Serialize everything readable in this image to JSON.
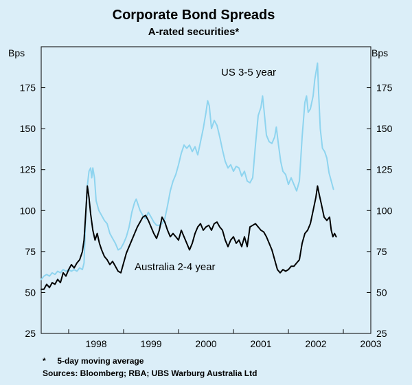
{
  "chart_data": {
    "type": "line",
    "title": "Corporate Bond Spreads",
    "subtitle": "A-rated securities*",
    "ylabel_left": "Bps",
    "ylabel_right": "Bps",
    "ylim": [
      25,
      200
    ],
    "yticks": [
      25,
      50,
      75,
      100,
      125,
      150,
      175
    ],
    "xlim": [
      1997.5,
      2003.5
    ],
    "xticks": [
      {
        "label": "1998",
        "value": 1998.0
      },
      {
        "label": "1999",
        "value": 1999.0
      },
      {
        "label": "2000",
        "value": 2000.0
      },
      {
        "label": "2001",
        "value": 2001.0
      },
      {
        "label": "2002",
        "value": 2002.0
      },
      {
        "label": "2003",
        "value": 2003.0
      }
    ],
    "grid": false,
    "series": [
      {
        "name": "US 3-5 year",
        "color": "#8ed4ef",
        "points": [
          [
            1997.5,
            58
          ],
          [
            1997.55,
            60
          ],
          [
            1997.6,
            61
          ],
          [
            1997.65,
            60
          ],
          [
            1997.7,
            62
          ],
          [
            1997.75,
            61
          ],
          [
            1997.8,
            63
          ],
          [
            1997.85,
            62
          ],
          [
            1997.9,
            64
          ],
          [
            1997.95,
            63
          ],
          [
            1998.0,
            64
          ],
          [
            1998.05,
            63
          ],
          [
            1998.1,
            64
          ],
          [
            1998.15,
            63
          ],
          [
            1998.2,
            65
          ],
          [
            1998.25,
            64
          ],
          [
            1998.28,
            68
          ],
          [
            1998.31,
            96
          ],
          [
            1998.34,
            115
          ],
          [
            1998.37,
            124
          ],
          [
            1998.4,
            126
          ],
          [
            1998.42,
            120
          ],
          [
            1998.44,
            126
          ],
          [
            1998.47,
            120
          ],
          [
            1998.5,
            106
          ],
          [
            1998.55,
            100
          ],
          [
            1998.6,
            97
          ],
          [
            1998.65,
            94
          ],
          [
            1998.7,
            92
          ],
          [
            1998.75,
            86
          ],
          [
            1998.8,
            83
          ],
          [
            1998.85,
            80
          ],
          [
            1998.9,
            76
          ],
          [
            1998.95,
            77
          ],
          [
            1999.0,
            80
          ],
          [
            1999.05,
            84
          ],
          [
            1999.1,
            90
          ],
          [
            1999.15,
            99
          ],
          [
            1999.2,
            105
          ],
          [
            1999.23,
            107
          ],
          [
            1999.26,
            104
          ],
          [
            1999.3,
            100
          ],
          [
            1999.35,
            97
          ],
          [
            1999.4,
            95
          ],
          [
            1999.45,
            99
          ],
          [
            1999.5,
            96
          ],
          [
            1999.55,
            93
          ],
          [
            1999.6,
            91
          ],
          [
            1999.65,
            91
          ],
          [
            1999.7,
            92
          ],
          [
            1999.75,
            95
          ],
          [
            1999.8,
            103
          ],
          [
            1999.85,
            112
          ],
          [
            1999.9,
            118
          ],
          [
            1999.95,
            122
          ],
          [
            2000.0,
            128
          ],
          [
            2000.05,
            135
          ],
          [
            2000.1,
            140
          ],
          [
            2000.15,
            138
          ],
          [
            2000.2,
            140
          ],
          [
            2000.25,
            136
          ],
          [
            2000.3,
            139
          ],
          [
            2000.35,
            134
          ],
          [
            2000.4,
            142
          ],
          [
            2000.45,
            150
          ],
          [
            2000.5,
            160
          ],
          [
            2000.53,
            167
          ],
          [
            2000.56,
            164
          ],
          [
            2000.6,
            150
          ],
          [
            2000.65,
            155
          ],
          [
            2000.7,
            152
          ],
          [
            2000.75,
            145
          ],
          [
            2000.8,
            137
          ],
          [
            2000.85,
            130
          ],
          [
            2000.9,
            126
          ],
          [
            2000.95,
            128
          ],
          [
            2001.0,
            124
          ],
          [
            2001.05,
            127
          ],
          [
            2001.1,
            126
          ],
          [
            2001.15,
            121
          ],
          [
            2001.2,
            124
          ],
          [
            2001.25,
            118
          ],
          [
            2001.3,
            117
          ],
          [
            2001.35,
            120
          ],
          [
            2001.4,
            140
          ],
          [
            2001.45,
            158
          ],
          [
            2001.5,
            163
          ],
          [
            2001.53,
            170
          ],
          [
            2001.56,
            160
          ],
          [
            2001.6,
            146
          ],
          [
            2001.65,
            142
          ],
          [
            2001.7,
            141
          ],
          [
            2001.75,
            145
          ],
          [
            2001.78,
            151
          ],
          [
            2001.82,
            140
          ],
          [
            2001.86,
            130
          ],
          [
            2001.9,
            124
          ],
          [
            2001.95,
            122
          ],
          [
            2002.0,
            116
          ],
          [
            2002.05,
            120
          ],
          [
            2002.1,
            116
          ],
          [
            2002.15,
            112
          ],
          [
            2002.2,
            118
          ],
          [
            2002.25,
            145
          ],
          [
            2002.3,
            166
          ],
          [
            2002.33,
            170
          ],
          [
            2002.36,
            160
          ],
          [
            2002.4,
            162
          ],
          [
            2002.45,
            170
          ],
          [
            2002.48,
            180
          ],
          [
            2002.51,
            186
          ],
          [
            2002.53,
            190
          ],
          [
            2002.55,
            172
          ],
          [
            2002.58,
            150
          ],
          [
            2002.62,
            138
          ],
          [
            2002.66,
            136
          ],
          [
            2002.7,
            132
          ],
          [
            2002.74,
            123
          ],
          [
            2002.78,
            118
          ],
          [
            2002.82,
            113
          ]
        ]
      },
      {
        "name": "Australia 2-4 year",
        "color": "#000000",
        "points": [
          [
            1997.5,
            52
          ],
          [
            1997.55,
            52
          ],
          [
            1997.6,
            55
          ],
          [
            1997.65,
            53
          ],
          [
            1997.7,
            56
          ],
          [
            1997.75,
            55
          ],
          [
            1997.8,
            58
          ],
          [
            1997.85,
            56
          ],
          [
            1997.9,
            62
          ],
          [
            1997.95,
            60
          ],
          [
            1998.0,
            64
          ],
          [
            1998.05,
            67
          ],
          [
            1998.1,
            65
          ],
          [
            1998.15,
            68
          ],
          [
            1998.2,
            70
          ],
          [
            1998.25,
            75
          ],
          [
            1998.28,
            82
          ],
          [
            1998.31,
            98
          ],
          [
            1998.34,
            115
          ],
          [
            1998.37,
            108
          ],
          [
            1998.4,
            98
          ],
          [
            1998.44,
            88
          ],
          [
            1998.48,
            82
          ],
          [
            1998.52,
            86
          ],
          [
            1998.56,
            80
          ],
          [
            1998.6,
            76
          ],
          [
            1998.65,
            72
          ],
          [
            1998.7,
            70
          ],
          [
            1998.75,
            67
          ],
          [
            1998.8,
            69
          ],
          [
            1998.85,
            66
          ],
          [
            1998.9,
            63
          ],
          [
            1998.95,
            62
          ],
          [
            1999.0,
            68
          ],
          [
            1999.05,
            74
          ],
          [
            1999.1,
            78
          ],
          [
            1999.15,
            82
          ],
          [
            1999.2,
            86
          ],
          [
            1999.25,
            90
          ],
          [
            1999.3,
            93
          ],
          [
            1999.35,
            96
          ],
          [
            1999.4,
            97
          ],
          [
            1999.45,
            94
          ],
          [
            1999.5,
            90
          ],
          [
            1999.55,
            86
          ],
          [
            1999.6,
            83
          ],
          [
            1999.65,
            88
          ],
          [
            1999.7,
            96
          ],
          [
            1999.75,
            93
          ],
          [
            1999.8,
            88
          ],
          [
            1999.85,
            84
          ],
          [
            1999.9,
            86
          ],
          [
            1999.95,
            84
          ],
          [
            2000.0,
            82
          ],
          [
            2000.05,
            88
          ],
          [
            2000.1,
            84
          ],
          [
            2000.15,
            80
          ],
          [
            2000.2,
            76
          ],
          [
            2000.25,
            80
          ],
          [
            2000.3,
            86
          ],
          [
            2000.35,
            90
          ],
          [
            2000.4,
            92
          ],
          [
            2000.45,
            88
          ],
          [
            2000.5,
            90
          ],
          [
            2000.55,
            91
          ],
          [
            2000.6,
            88
          ],
          [
            2000.65,
            92
          ],
          [
            2000.7,
            93
          ],
          [
            2000.75,
            90
          ],
          [
            2000.8,
            88
          ],
          [
            2000.85,
            82
          ],
          [
            2000.9,
            78
          ],
          [
            2000.95,
            82
          ],
          [
            2001.0,
            84
          ],
          [
            2001.05,
            80
          ],
          [
            2001.1,
            82
          ],
          [
            2001.15,
            78
          ],
          [
            2001.2,
            84
          ],
          [
            2001.25,
            78
          ],
          [
            2001.3,
            90
          ],
          [
            2001.35,
            91
          ],
          [
            2001.4,
            92
          ],
          [
            2001.45,
            90
          ],
          [
            2001.5,
            88
          ],
          [
            2001.55,
            87
          ],
          [
            2001.6,
            84
          ],
          [
            2001.65,
            80
          ],
          [
            2001.7,
            76
          ],
          [
            2001.75,
            70
          ],
          [
            2001.8,
            64
          ],
          [
            2001.85,
            62
          ],
          [
            2001.9,
            64
          ],
          [
            2001.95,
            63
          ],
          [
            2002.0,
            64
          ],
          [
            2002.05,
            66
          ],
          [
            2002.1,
            66
          ],
          [
            2002.15,
            68
          ],
          [
            2002.2,
            70
          ],
          [
            2002.25,
            80
          ],
          [
            2002.3,
            86
          ],
          [
            2002.35,
            88
          ],
          [
            2002.4,
            92
          ],
          [
            2002.45,
            100
          ],
          [
            2002.5,
            108
          ],
          [
            2002.53,
            115
          ],
          [
            2002.56,
            110
          ],
          [
            2002.6,
            104
          ],
          [
            2002.65,
            96
          ],
          [
            2002.7,
            94
          ],
          [
            2002.75,
            96
          ],
          [
            2002.78,
            88
          ],
          [
            2002.81,
            84
          ],
          [
            2002.84,
            86
          ],
          [
            2002.87,
            84
          ]
        ]
      }
    ]
  },
  "footnote": "*     5-day moving average",
  "sources": "Sources: Bloomberg; RBA; UBS Warburg Australia Ltd"
}
